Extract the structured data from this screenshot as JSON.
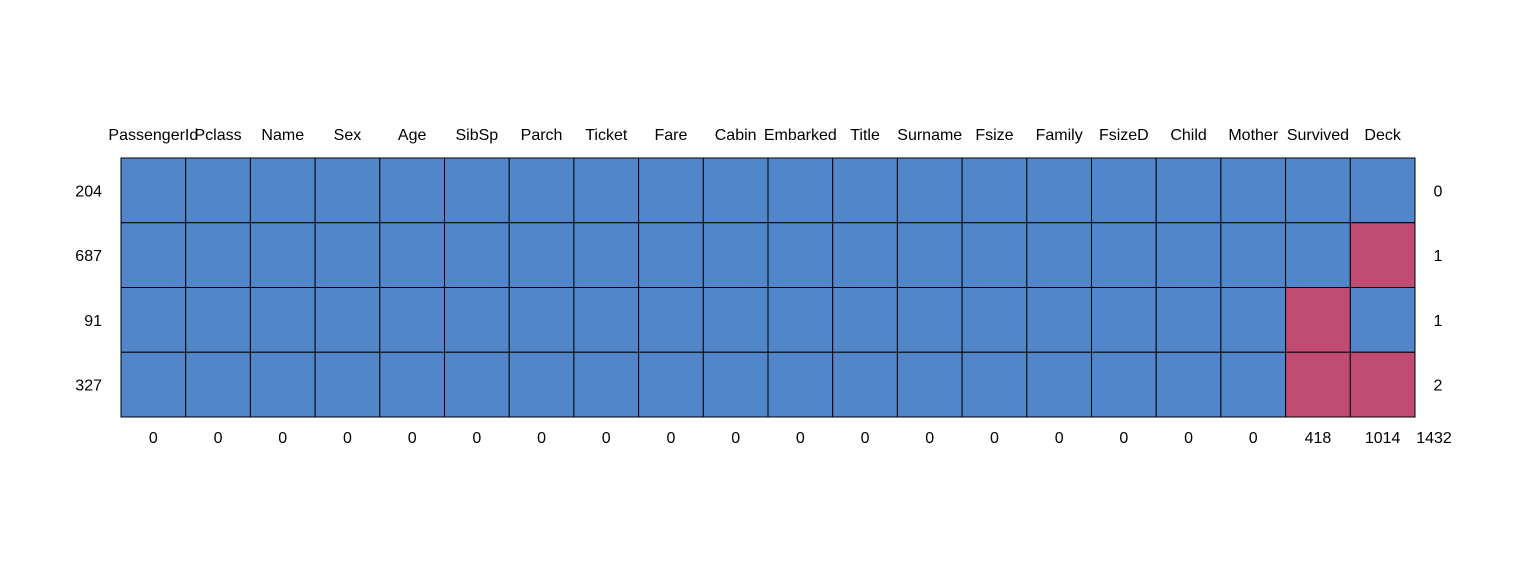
{
  "chart_data": {
    "type": "heatmap",
    "title": "",
    "columns": [
      "PassengerId",
      "Pclass",
      "Name",
      "Sex",
      "Age",
      "SibSp",
      "Parch",
      "Ticket",
      "Fare",
      "Cabin",
      "Embarked",
      "Title",
      "Surname",
      "Fsize",
      "Family",
      "FsizeD",
      "Child",
      "Mother",
      "Survived",
      "Deck"
    ],
    "rows": [
      {
        "count": "204",
        "missing_total": "0",
        "missing": [
          0,
          0,
          0,
          0,
          0,
          0,
          0,
          0,
          0,
          0,
          0,
          0,
          0,
          0,
          0,
          0,
          0,
          0,
          0,
          0
        ]
      },
      {
        "count": "687",
        "missing_total": "1",
        "missing": [
          0,
          0,
          0,
          0,
          0,
          0,
          0,
          0,
          0,
          0,
          0,
          0,
          0,
          0,
          0,
          0,
          0,
          0,
          0,
          1
        ]
      },
      {
        "count": "91",
        "missing_total": "1",
        "missing": [
          0,
          0,
          0,
          0,
          0,
          0,
          0,
          0,
          0,
          0,
          0,
          0,
          0,
          0,
          0,
          0,
          0,
          0,
          1,
          0
        ]
      },
      {
        "count": "327",
        "missing_total": "2",
        "missing": [
          0,
          0,
          0,
          0,
          0,
          0,
          0,
          0,
          0,
          0,
          0,
          0,
          0,
          0,
          0,
          0,
          0,
          0,
          1,
          1
        ]
      }
    ],
    "column_missing": [
      "0",
      "0",
      "0",
      "0",
      "0",
      "0",
      "0",
      "0",
      "0",
      "0",
      "0",
      "0",
      "0",
      "0",
      "0",
      "0",
      "0",
      "0",
      "418",
      "1014"
    ],
    "total_missing": "1432",
    "colors": {
      "observed": "#5187CA",
      "missing": "#C04C74",
      "border": "#000000"
    }
  }
}
